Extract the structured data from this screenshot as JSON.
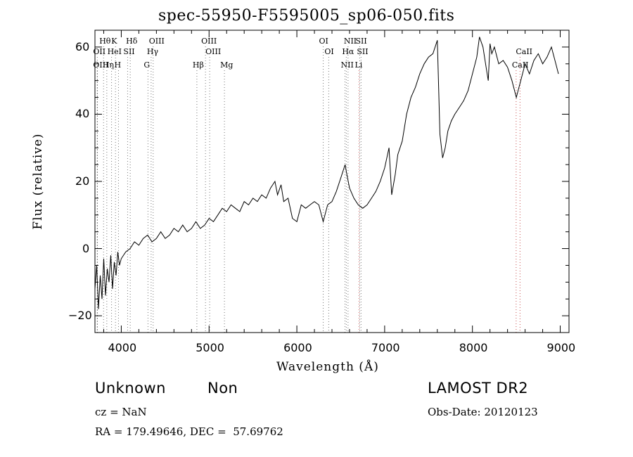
{
  "chart_data": {
    "type": "line",
    "title": "spec-55950-F5595005_sp06-050.fits",
    "xlabel": "Wavelength (Å)",
    "ylabel": "Flux (relative)",
    "xlim": [
      3700,
      9100
    ],
    "ylim": [
      -25,
      65
    ],
    "xticks": [
      4000,
      5000,
      6000,
      7000,
      8000,
      9000
    ],
    "yticks": [
      -20,
      0,
      20,
      40,
      60
    ],
    "series": [
      {
        "x": [
          3700,
          3720,
          3740,
          3760,
          3780,
          3800,
          3820,
          3840,
          3860,
          3880,
          3900,
          3920,
          3940,
          3960,
          3980,
          4000,
          4050,
          4100,
          4150,
          4200,
          4250,
          4300,
          4350,
          4400,
          4450,
          4500,
          4550,
          4600,
          4650,
          4700,
          4750,
          4800,
          4850,
          4900,
          4950,
          5000,
          5050,
          5100,
          5150,
          5200,
          5250,
          5300,
          5350,
          5400,
          5450,
          5500,
          5550,
          5600,
          5650,
          5700,
          5750,
          5780,
          5820,
          5850,
          5900,
          5950,
          6000,
          6050,
          6100,
          6150,
          6200,
          6250,
          6300,
          6350,
          6400,
          6450,
          6500,
          6550,
          6570,
          6600,
          6650,
          6700,
          6750,
          6800,
          6850,
          6900,
          6950,
          7000,
          7050,
          7080,
          7120,
          7150,
          7200,
          7250,
          7300,
          7350,
          7400,
          7450,
          7500,
          7550,
          7600,
          7630,
          7660,
          7690,
          7720,
          7760,
          7800,
          7850,
          7900,
          7950,
          8000,
          8050,
          8080,
          8120,
          8150,
          8180,
          8200,
          8220,
          8250,
          8300,
          8350,
          8400,
          8450,
          8500,
          8520,
          8550,
          8600,
          8650,
          8700,
          8750,
          8800,
          8850,
          8900,
          8950,
          8980
        ],
        "y": [
          -12,
          -5,
          -18,
          -8,
          -15,
          -3,
          -14,
          -6,
          -10,
          -2,
          -12,
          -4,
          -8,
          -1,
          -5,
          -3,
          -1,
          0,
          2,
          1,
          3,
          4,
          2,
          3,
          5,
          3,
          4,
          6,
          5,
          7,
          5,
          6,
          8,
          6,
          7,
          9,
          8,
          10,
          12,
          11,
          13,
          12,
          11,
          14,
          13,
          15,
          14,
          16,
          15,
          18,
          20,
          16,
          19,
          14,
          15,
          9,
          8,
          13,
          12,
          13,
          14,
          13,
          8,
          13,
          14,
          17,
          21,
          25,
          22,
          18,
          15,
          13,
          12,
          13,
          15,
          17,
          20,
          24,
          30,
          16,
          22,
          28,
          32,
          40,
          45,
          48,
          52,
          55,
          57,
          58,
          62,
          34,
          27,
          30,
          35,
          38,
          40,
          42,
          44,
          47,
          52,
          57,
          63,
          60,
          55,
          50,
          61,
          58,
          60,
          55,
          56,
          54,
          50,
          45,
          47,
          50,
          55,
          52,
          56,
          58,
          55,
          57,
          60,
          55,
          52
        ]
      }
    ],
    "lines": [
      {
        "label": "Hθ",
        "x": 3798,
        "row": 0,
        "color": "#777777"
      },
      {
        "label": "K",
        "x": 3934,
        "row": 0,
        "color": "#777777"
      },
      {
        "label": "Hδ",
        "x": 4102,
        "row": 0,
        "color": "#777777"
      },
      {
        "label": "OIII",
        "x": 4363,
        "row": 0,
        "color": "#777777"
      },
      {
        "label": "OIII",
        "x": 4959,
        "row": 0,
        "color": "#777777"
      },
      {
        "label": "OI",
        "x": 6300,
        "row": 0,
        "color": "#777777"
      },
      {
        "label": "NII",
        "x": 6583,
        "row": 0,
        "color": "#777777"
      },
      {
        "label": "SII",
        "x": 6716,
        "row": 0,
        "color": "#777777"
      },
      {
        "label": "OII",
        "x": 3727,
        "row": 1,
        "color": "#777777"
      },
      {
        "label": "HeI",
        "x": 3889,
        "row": 1,
        "color": "#777777"
      },
      {
        "label": "SII",
        "x": 4072,
        "row": 1,
        "color": "#777777"
      },
      {
        "label": "Hγ",
        "x": 4340,
        "row": 1,
        "color": "#777777"
      },
      {
        "label": "OIII",
        "x": 5007,
        "row": 1,
        "color": "#777777"
      },
      {
        "label": "OI",
        "x": 6363,
        "row": 1,
        "color": "#777777"
      },
      {
        "label": "Hα",
        "x": 6563,
        "row": 1,
        "color": "#777777"
      },
      {
        "label": "SII",
        "x": 6731,
        "row": 1,
        "color": "#777777"
      },
      {
        "label": "CaII",
        "x": 8542,
        "row": 1,
        "color": "#c85050"
      },
      {
        "label": "OIII",
        "x": 3727,
        "row": 2,
        "color": "#777777"
      },
      {
        "label": "Hη",
        "x": 3835,
        "row": 2,
        "color": "#777777"
      },
      {
        "label": "H",
        "x": 3968,
        "row": 2,
        "color": "#777777"
      },
      {
        "label": "G",
        "x": 4304,
        "row": 2,
        "color": "#777777"
      },
      {
        "label": "Hβ",
        "x": 4861,
        "row": 2,
        "color": "#777777"
      },
      {
        "label": "Mg",
        "x": 5175,
        "row": 2,
        "color": "#777777"
      },
      {
        "label": "NII",
        "x": 6548,
        "row": 2,
        "color": "#777777"
      },
      {
        "label": "Li",
        "x": 6708,
        "row": 2,
        "color": "#c85050"
      },
      {
        "label": "CaII",
        "x": 8498,
        "row": 2,
        "color": "#c85050"
      }
    ]
  },
  "info": {
    "class": "Unknown",
    "subclass": "Non",
    "cz": "cz = NaN",
    "radec": "RA = 179.49646, DEC =  57.69762",
    "survey": "LAMOST DR2",
    "obsdate": "Obs-Date: 20120123"
  }
}
